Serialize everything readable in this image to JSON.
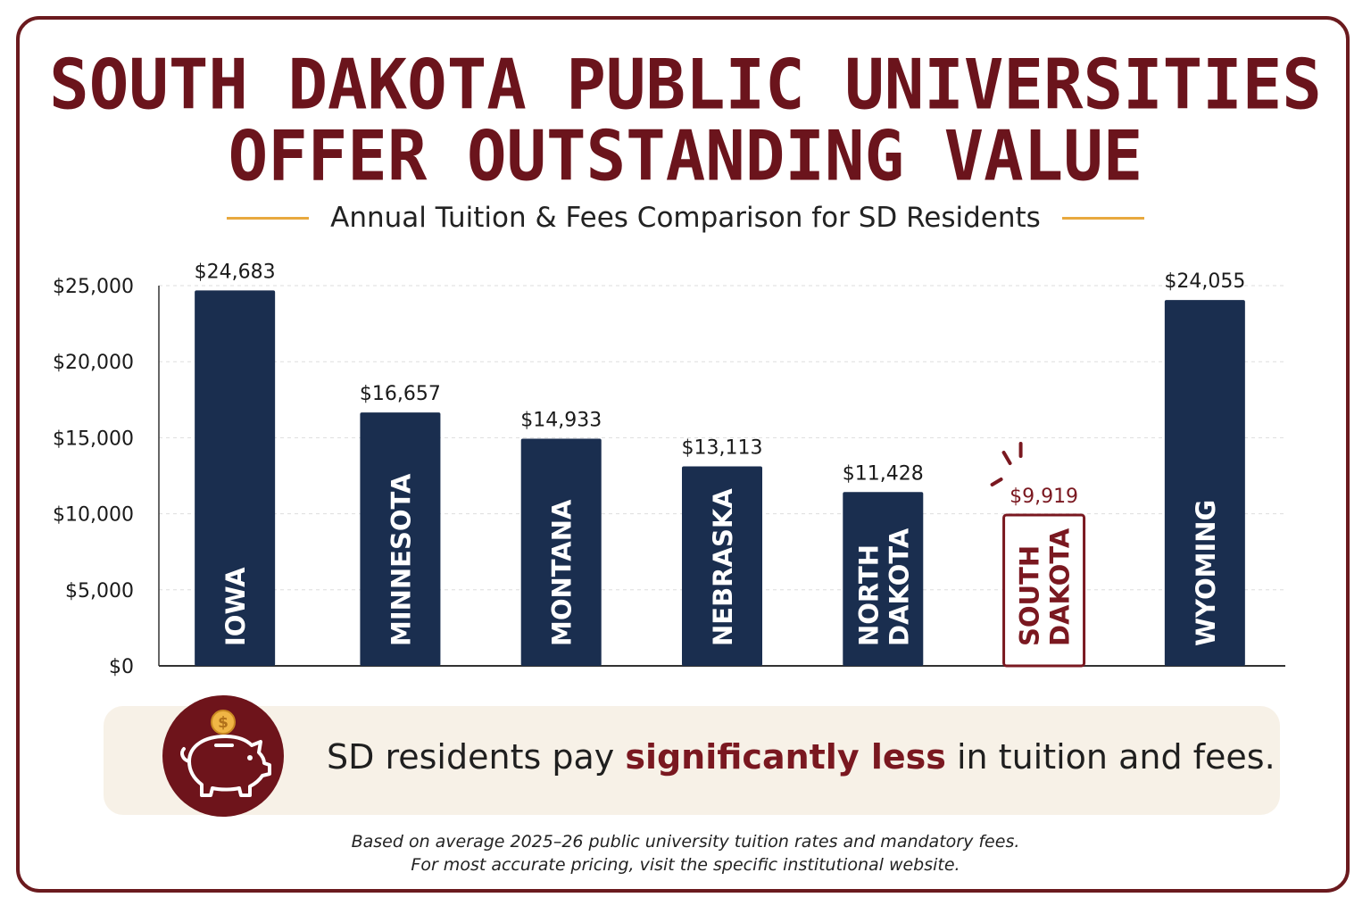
{
  "header": {
    "title_line1": "SOUTH DAKOTA PUBLIC UNIVERSITIES",
    "title_line2": "OFFER OUTSTANDING VALUE",
    "subtitle": "Annual Tuition & Fees Comparison for SD Residents"
  },
  "chart_data": {
    "type": "bar",
    "title": "",
    "xlabel": "",
    "ylabel": "",
    "ylim": [
      0,
      25000
    ],
    "yticks": [
      0,
      5000,
      10000,
      15000,
      20000,
      25000
    ],
    "ytick_labels": [
      "$0",
      "$5,000",
      "$10,000",
      "$15,000",
      "$20,000",
      "$25,000"
    ],
    "grid": true,
    "categories": [
      [
        "IOWA"
      ],
      [
        "MINNESOTA"
      ],
      [
        "MONTANA"
      ],
      [
        "NEBRASKA"
      ],
      [
        "NORTH",
        "DAKOTA"
      ],
      [
        "SOUTH",
        "DAKOTA"
      ],
      [
        "WYOMING"
      ]
    ],
    "values": [
      24683,
      16657,
      14933,
      13113,
      11428,
      9919,
      24055
    ],
    "value_labels": [
      "$24,683",
      "$16,657",
      "$14,933",
      "$13,113",
      "$11,428",
      "$9,919",
      "$24,055"
    ],
    "highlight_index": 5,
    "colors": {
      "bar": "#1a2e4f",
      "highlight": "#7a1820",
      "grid": "#dddddd",
      "axis": "#333333"
    }
  },
  "banner": {
    "icon": "piggy-bank-icon",
    "text_before": "SD residents pay ",
    "text_highlight": "significantly less",
    "text_after": " in tuition and fees."
  },
  "footnote": {
    "line1": "Based on average 2025–26 public university tuition rates and mandatory fees.",
    "line2": "For most accurate pricing, visit the specific institutional website."
  },
  "colors": {
    "brand": "#6b141c",
    "accent": "#e8a93e",
    "banner_bg": "#f7f1e7"
  }
}
